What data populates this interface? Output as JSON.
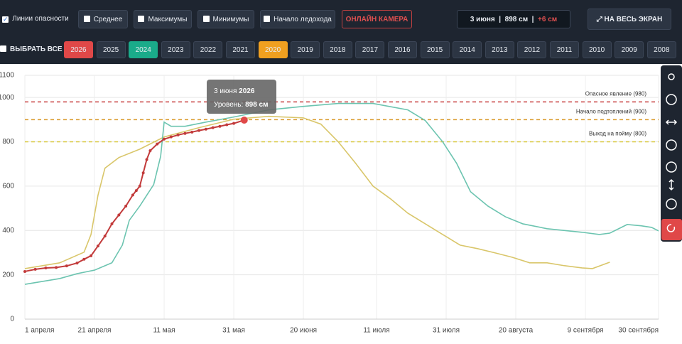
{
  "toolbar": {
    "checkboxes": [
      {
        "label": "Линии опасности",
        "checked": true
      },
      {
        "label": "Среднее",
        "checked": false
      },
      {
        "label": "Максимумы",
        "checked": false
      },
      {
        "label": "Минимумы",
        "checked": false
      },
      {
        "label": "Начало ледохода",
        "checked": false
      }
    ],
    "camera": "ОНЛАЙН КАМЕРА",
    "status": {
      "date": "3 июня",
      "level": "898 см",
      "change": "+6 см"
    },
    "fullscreen": "НА ВЕСЬ ЭКРАН",
    "select_all": "ВЫБРАТЬ ВСЕ",
    "years": [
      "2026",
      "2025",
      "2024",
      "2023",
      "2022",
      "2021",
      "2020",
      "2019",
      "2018",
      "2017",
      "2016",
      "2015",
      "2014",
      "2013",
      "2012",
      "2011",
      "2010",
      "2009",
      "2008"
    ]
  },
  "chart_data": {
    "type": "line",
    "xlim": [
      0,
      182
    ],
    "xticks": [
      {
        "value": 0,
        "label": "1 апреля"
      },
      {
        "value": 20,
        "label": "21 апреля"
      },
      {
        "value": 40,
        "label": "11 мая"
      },
      {
        "value": 60,
        "label": "31 мая"
      },
      {
        "value": 80,
        "label": "20 июня"
      },
      {
        "value": 101,
        "label": "11 июля"
      },
      {
        "value": 121,
        "label": "31 июля"
      },
      {
        "value": 141,
        "label": "20 августа"
      },
      {
        "value": 161,
        "label": "9 сентября"
      },
      {
        "value": 182,
        "label": "30 сентября"
      }
    ],
    "ylim": [
      0,
      1100
    ],
    "yticks": [
      0,
      200,
      400,
      600,
      800,
      1000,
      1100
    ],
    "grid": true,
    "thresholds": [
      {
        "label": "Опасное явление (980)",
        "value": 980,
        "color": "#c94040"
      },
      {
        "label": "Начало подтоплений (900)",
        "value": 900,
        "color": "#d99a2b"
      },
      {
        "label": "Выход на пойму (800)",
        "value": 800,
        "color": "#d8c83a"
      }
    ],
    "series": [
      {
        "name": "2026",
        "color": "#c23a3a",
        "button_color": "#e04848",
        "markers": true,
        "x": [
          0,
          3,
          6,
          9,
          12,
          15,
          17,
          19,
          21,
          23,
          25,
          27,
          29,
          31,
          32,
          33,
          34,
          35,
          36,
          38,
          40,
          42,
          44,
          46,
          48,
          50,
          52,
          54,
          56,
          58,
          60,
          63
        ],
        "values": [
          215,
          225,
          231,
          233,
          240,
          253,
          270,
          286,
          330,
          375,
          430,
          470,
          510,
          560,
          580,
          600,
          660,
          720,
          760,
          790,
          812,
          822,
          831,
          838,
          844,
          851,
          857,
          864,
          870,
          877,
          883,
          898
        ]
      },
      {
        "name": "2024",
        "color": "#6cc4b0",
        "button_color": "#1aab8a",
        "markers": false,
        "x": [
          0,
          10,
          15,
          20,
          25,
          28,
          30,
          33,
          37,
          39,
          40,
          42,
          46,
          52,
          60,
          70,
          80,
          90,
          100,
          110,
          115,
          120,
          124,
          128,
          133,
          138,
          143,
          150,
          160,
          165,
          168,
          173,
          177,
          180,
          182
        ],
        "values": [
          157,
          183,
          205,
          221,
          254,
          334,
          446,
          510,
          607,
          735,
          889,
          870,
          870,
          889,
          912,
          944,
          960,
          973,
          973,
          944,
          896,
          800,
          703,
          575,
          510,
          462,
          430,
          408,
          392,
          382,
          388,
          427,
          421,
          414,
          398
        ]
      },
      {
        "name": "2020",
        "color": "#d9c66a",
        "button_color": "#f0a020",
        "markers": false,
        "x": [
          0,
          10,
          17,
          19,
          21,
          23,
          27,
          33,
          40,
          50,
          60,
          70,
          80,
          85,
          90,
          95,
          100,
          105,
          110,
          115,
          120,
          125,
          130,
          135,
          140,
          145,
          150,
          155,
          160,
          163,
          168
        ],
        "values": [
          228,
          254,
          302,
          382,
          559,
          681,
          729,
          767,
          822,
          864,
          902,
          915,
          908,
          880,
          800,
          703,
          600,
          543,
          478,
          430,
          382,
          334,
          318,
          299,
          279,
          254,
          254,
          241,
          231,
          228,
          257
        ]
      }
    ],
    "tooltip": {
      "date": "3 июня",
      "label": "Уровень:",
      "value": "898 см"
    }
  }
}
